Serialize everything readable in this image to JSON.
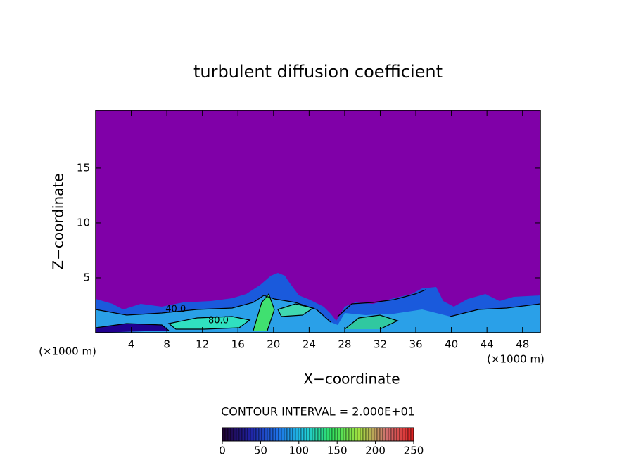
{
  "chart_data": {
    "type": "contour",
    "title": "turbulent diffusion coefficient",
    "xlabel": "X−coordinate",
    "ylabel": "Z−coordinate",
    "x_unit_labels": [
      "(×1000 m)",
      "(×1000 m)"
    ],
    "xlim": [
      0,
      50
    ],
    "xticks": [
      4,
      8,
      12,
      16,
      20,
      24,
      28,
      32,
      36,
      40,
      44,
      48
    ],
    "ylim": [
      0,
      20.25
    ],
    "yticks": [
      5,
      10,
      15
    ],
    "contour_interval_label": "CONTOUR INTERVAL = 2.000E+01",
    "contour_labels": [
      {
        "x": 9,
        "y": 2.1,
        "label": "40.0"
      },
      {
        "x": 13.8,
        "y": 1.1,
        "label": "80.0"
      }
    ],
    "colorbar": {
      "lim": [
        0,
        250
      ],
      "ticks": [
        0,
        50,
        100,
        150,
        200,
        250
      ],
      "colormap": [
        "#200030",
        "#2020a0",
        "#1e6ee6",
        "#20c8e0",
        "#30e060",
        "#a0e040",
        "#d07070",
        "#e02020"
      ]
    },
    "background_color": "#8000a8"
  }
}
